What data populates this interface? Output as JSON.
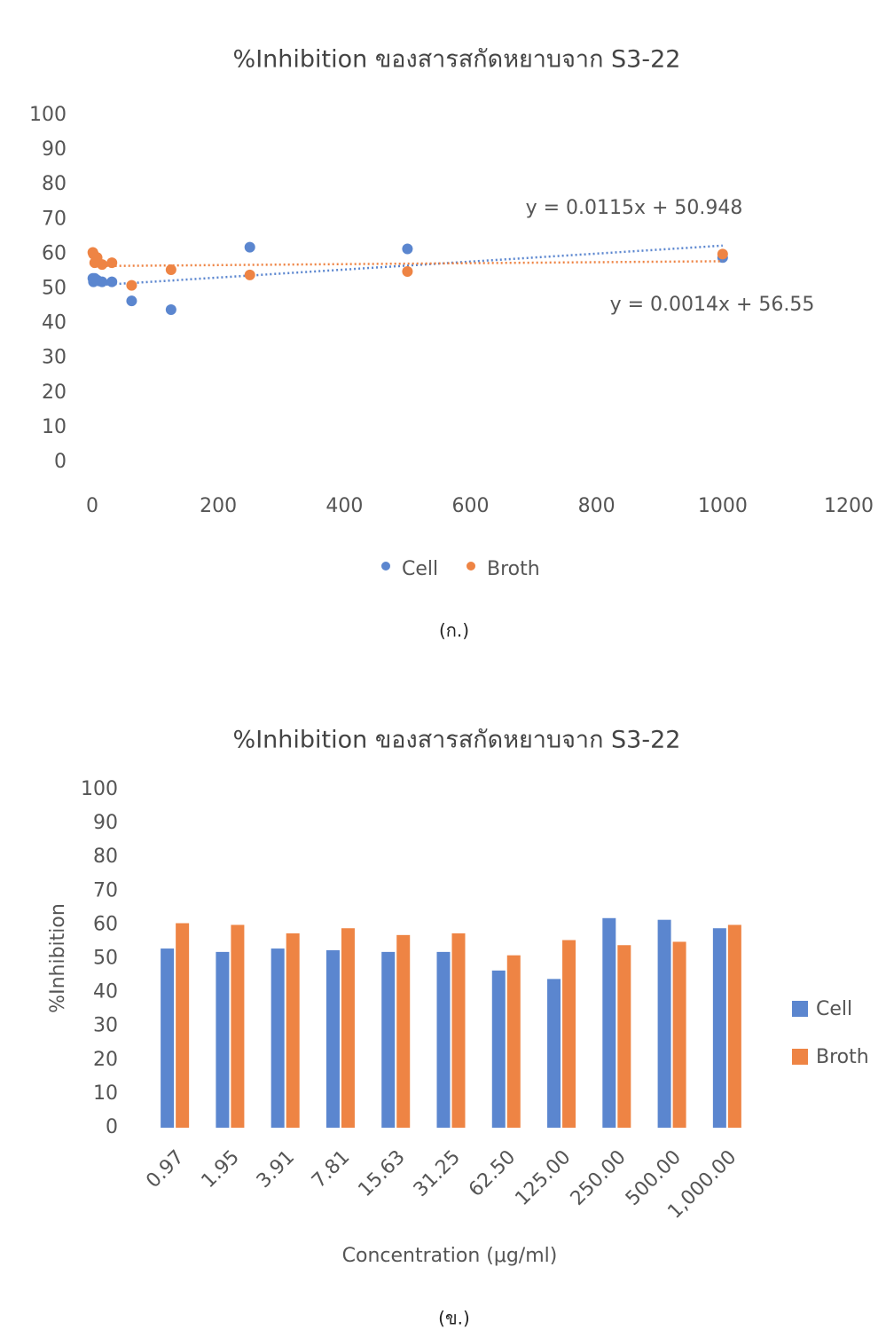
{
  "chart_data": [
    {
      "type": "scatter",
      "title": "%Inhibition ของสารสกัดหยาบจาก S3-22",
      "caption": "(ก.)",
      "x": [
        0.97,
        1.95,
        3.91,
        7.81,
        15.63,
        31.25,
        62.5,
        125,
        250,
        500,
        1000
      ],
      "series": [
        {
          "name": "Cell",
          "color": "#5b86cf",
          "values": [
            53,
            52,
            53,
            52.5,
            52,
            52,
            46.5,
            44,
            62,
            61.5,
            59
          ],
          "trendline": {
            "label": "y = 0.0115x + 50.948",
            "slope": 0.0115,
            "intercept": 50.948
          }
        },
        {
          "name": "Broth",
          "color": "#ee8444",
          "values": [
            60.5,
            60,
            57.5,
            59,
            57,
            57.5,
            51,
            55.5,
            54,
            55,
            60
          ],
          "trendline": {
            "label": "y = 0.0014x + 56.55",
            "slope": 0.0014,
            "intercept": 56.55
          }
        }
      ],
      "xlim": [
        0,
        1200
      ],
      "xticks": [
        0,
        200,
        400,
        600,
        800,
        1000,
        1200
      ],
      "ylim": [
        0,
        100
      ],
      "yticks": [
        0,
        10,
        20,
        30,
        40,
        50,
        60,
        70,
        80,
        90,
        100
      ],
      "legend": "bottom"
    },
    {
      "type": "bar",
      "title": "%Inhibition ของสารสกัดหยาบจาก S3-22",
      "caption": "(ข.)",
      "x_label": "Concentration (μg/ml)",
      "y_label": "%Inhibition",
      "categories": [
        "0.97",
        "1.95",
        "3.91",
        "7.81",
        "15.63",
        "31.25",
        "62.50",
        "125.00",
        "250.00",
        "500.00",
        "1,000.00"
      ],
      "series": [
        {
          "name": "Cell",
          "color": "#5b86cf",
          "values": [
            53,
            52,
            53,
            52.5,
            52,
            52,
            46.5,
            44,
            62,
            61.5,
            59
          ]
        },
        {
          "name": "Broth",
          "color": "#ee8444",
          "values": [
            60.5,
            60,
            57.5,
            59,
            57,
            57.5,
            51,
            55.5,
            54,
            55,
            60
          ]
        }
      ],
      "ylim": [
        0,
        100
      ],
      "yticks": [
        0,
        10,
        20,
        30,
        40,
        50,
        60,
        70,
        80,
        90,
        100
      ],
      "legend": "right"
    }
  ]
}
